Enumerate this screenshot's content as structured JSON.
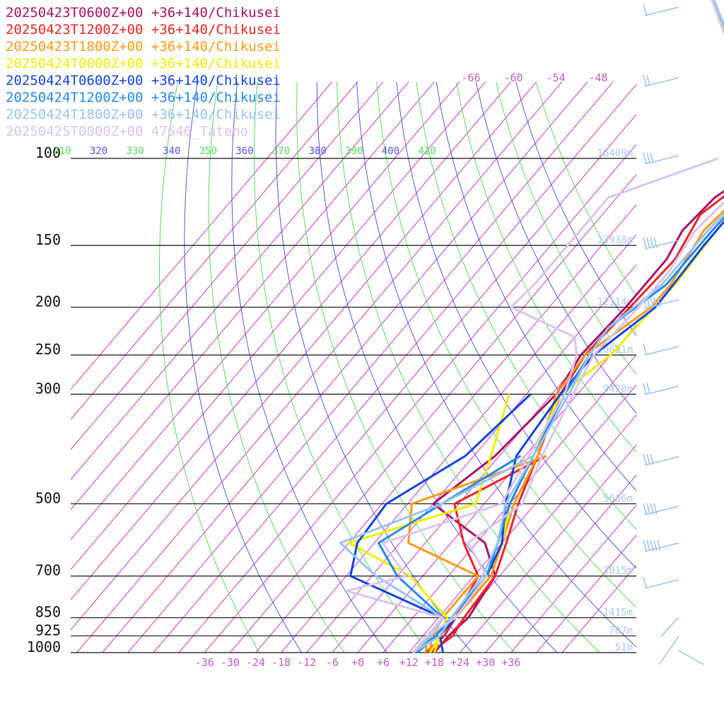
{
  "chart_data": {
    "type": "line",
    "title": "",
    "xlabel": "",
    "ylabel": "",
    "pressure_levels": [
      100,
      150,
      200,
      250,
      300,
      500,
      700,
      850,
      925,
      1000
    ],
    "pressure_labels": [
      "100",
      "150",
      "200",
      "250",
      "300",
      "500",
      "700",
      "850",
      "925",
      "1000"
    ],
    "height_labels": [
      "16409m",
      "13938m",
      "12114m",
      "10621m",
      "9420m",
      "5666m",
      "3015m",
      "1415m",
      "707m",
      "51m"
    ],
    "temp_ticks": [
      -36,
      -30,
      -24,
      -18,
      -12,
      -6,
      0,
      6,
      12,
      18,
      24,
      30,
      36
    ],
    "temp_tick_labels": [
      "-36",
      "-30",
      "-24",
      "-18",
      "-12",
      "-6",
      "+0",
      "+6",
      "+12",
      "+18",
      "+24",
      "+30",
      "+36"
    ],
    "mixing_labels": [
      "-66",
      "-60",
      "-54",
      "-48"
    ],
    "theta_ticks": [
      {
        "label": "310",
        "color": "#55dd55"
      },
      {
        "label": "320",
        "color": "#5555dd"
      },
      {
        "label": "330",
        "color": "#55dd55"
      },
      {
        "label": "340",
        "color": "#5555dd"
      },
      {
        "label": "350",
        "color": "#55dd55"
      },
      {
        "label": "360",
        "color": "#5555dd"
      },
      {
        "label": "370",
        "color": "#55dd55"
      },
      {
        "label": "380",
        "color": "#5555dd"
      },
      {
        "label": "390",
        "color": "#55dd55"
      },
      {
        "label": "400",
        "color": "#5555dd"
      },
      {
        "label": "410",
        "color": "#55dd55"
      }
    ],
    "series": [
      {
        "name": "20250423T0600Z+00 +36+140/Chikusei",
        "color": "#aa1166",
        "temp": [
          [
            100,
            -1
          ],
          [
            120,
            -7
          ],
          [
            140,
            -8
          ],
          [
            160,
            -6
          ],
          [
            200,
            -6
          ],
          [
            250,
            -7
          ],
          [
            300,
            -5
          ],
          [
            400,
            -7
          ],
          [
            500,
            -12
          ],
          [
            600,
            8
          ],
          [
            700,
            17
          ],
          [
            850,
            19
          ],
          [
            925,
            18
          ],
          [
            1000,
            18
          ]
        ],
        "dew": []
      },
      {
        "name": "20250423T1200Z+00 +36+140/Chikusei",
        "color": "#ee2222",
        "temp": [
          [
            100,
            -1
          ],
          [
            130,
            -7
          ],
          [
            160,
            -4
          ],
          [
            200,
            -5
          ],
          [
            250,
            -6
          ],
          [
            300,
            -4
          ],
          [
            400,
            3
          ],
          [
            500,
            8
          ],
          [
            600,
            13
          ],
          [
            700,
            17
          ],
          [
            850,
            18
          ],
          [
            925,
            19
          ],
          [
            1000,
            17
          ]
        ],
        "dew": [
          [
            400,
            5
          ],
          [
            500,
            -7
          ],
          [
            600,
            3
          ],
          [
            700,
            13
          ],
          [
            850,
            16
          ],
          [
            925,
            17
          ],
          [
            1000,
            16
          ]
        ]
      },
      {
        "name": "20250423T1800Z+00 +36+140/Chikusei",
        "color": "#ff9911",
        "temp": [
          [
            100,
            0
          ],
          [
            140,
            -3
          ],
          [
            180,
            0
          ],
          [
            200,
            0
          ],
          [
            250,
            -6
          ],
          [
            300,
            -5
          ],
          [
            400,
            3
          ],
          [
            500,
            7
          ],
          [
            600,
            12
          ],
          [
            700,
            16
          ],
          [
            850,
            16
          ],
          [
            925,
            14
          ],
          [
            1000,
            17
          ]
        ],
        "dew": [
          [
            400,
            5
          ],
          [
            500,
            -17
          ],
          [
            600,
            -10
          ],
          [
            700,
            13
          ],
          [
            850,
            13
          ],
          [
            925,
            13
          ],
          [
            1000,
            16
          ]
        ]
      },
      {
        "name": "20250424T0000Z+00 +36+140/Chikusei",
        "color": "#eeee00",
        "temp": [
          [
            100,
            -1
          ],
          [
            140,
            0
          ],
          [
            180,
            1
          ],
          [
            250,
            0
          ],
          [
            300,
            -4
          ],
          [
            400,
            2
          ],
          [
            500,
            6
          ],
          [
            600,
            12
          ],
          [
            700,
            15
          ],
          [
            850,
            15
          ],
          [
            925,
            16
          ],
          [
            1000,
            18
          ]
        ],
        "dew": [
          [
            300,
            -16
          ],
          [
            400,
            -8
          ],
          [
            500,
            -2
          ],
          [
            600,
            -24
          ],
          [
            700,
            -3
          ],
          [
            850,
            14
          ],
          [
            925,
            16
          ],
          [
            1000,
            17
          ]
        ]
      },
      {
        "name": "20250424T0600Z+00 +36+140/Chikusei",
        "color": "#1144dd",
        "temp": [
          [
            100,
            0
          ],
          [
            150,
            0
          ],
          [
            200,
            1
          ],
          [
            250,
            -4
          ],
          [
            300,
            -4
          ],
          [
            400,
            -2
          ],
          [
            500,
            5
          ],
          [
            600,
            12
          ],
          [
            700,
            15
          ],
          [
            850,
            16
          ],
          [
            925,
            16
          ],
          [
            1000,
            20
          ]
        ],
        "dew": [
          [
            300,
            -11
          ],
          [
            400,
            -14
          ],
          [
            500,
            -23
          ],
          [
            600,
            -22
          ],
          [
            700,
            -17
          ],
          [
            850,
            13
          ],
          [
            925,
            14
          ],
          [
            1000,
            14
          ]
        ]
      },
      {
        "name": "20250424T1200Z+00 +36+140/Chikusei",
        "color": "#2288ee",
        "temp": [
          [
            100,
            0
          ],
          [
            140,
            -1
          ],
          [
            180,
            -1
          ],
          [
            220,
            -6
          ],
          [
            250,
            -5
          ],
          [
            300,
            -3
          ],
          [
            400,
            2
          ],
          [
            500,
            6
          ],
          [
            600,
            11
          ],
          [
            700,
            15
          ],
          [
            850,
            15
          ],
          [
            925,
            15
          ],
          [
            1000,
            14
          ]
        ],
        "dew": [
          [
            400,
            -1
          ],
          [
            500,
            -10
          ],
          [
            600,
            -17
          ],
          [
            700,
            -6
          ],
          [
            850,
            13
          ],
          [
            925,
            14
          ],
          [
            1000,
            14
          ]
        ]
      },
      {
        "name": "20250424T1800Z+00 +36+140/Chikusei",
        "color": "#99c4ee",
        "temp": [
          [
            100,
            0
          ],
          [
            140,
            -2
          ],
          [
            180,
            -2
          ],
          [
            220,
            -6
          ],
          [
            250,
            -5
          ],
          [
            300,
            -2
          ],
          [
            400,
            2
          ],
          [
            500,
            5
          ],
          [
            600,
            11
          ],
          [
            700,
            14
          ],
          [
            850,
            15
          ],
          [
            925,
            16
          ],
          [
            1000,
            13
          ]
        ],
        "dew": [
          [
            400,
            2
          ],
          [
            500,
            -10
          ],
          [
            600,
            -26
          ],
          [
            700,
            -11
          ],
          [
            850,
            13
          ],
          [
            925,
            14
          ],
          [
            1000,
            13
          ]
        ]
      },
      {
        "name": "20250425T0000Z+00 47646_Tateno",
        "color": "#d8c4ee",
        "temp": [
          [
            100,
            -2
          ],
          [
            140,
            -5
          ],
          [
            170,
            -3
          ],
          [
            200,
            -3
          ],
          [
            250,
            -4
          ],
          [
            300,
            -1
          ],
          [
            400,
            4
          ],
          [
            500,
            9
          ],
          [
            600,
            4
          ],
          [
            700,
            15
          ],
          [
            850,
            16
          ],
          [
            925,
            13
          ],
          [
            1000,
            13
          ]
        ],
        "dew": [
          [
            100,
            -14
          ],
          [
            120,
            -32
          ],
          [
            180,
            -32
          ],
          [
            200,
            -33
          ],
          [
            230,
            -12
          ],
          [
            250,
            -8
          ],
          [
            300,
            -3
          ],
          [
            500,
            4
          ],
          [
            600,
            -16
          ],
          [
            700,
            -4
          ],
          [
            750,
            -15
          ],
          [
            850,
            13
          ],
          [
            1000,
            13
          ]
        ]
      }
    ],
    "wind_barbs_color": "#99c4ee"
  }
}
